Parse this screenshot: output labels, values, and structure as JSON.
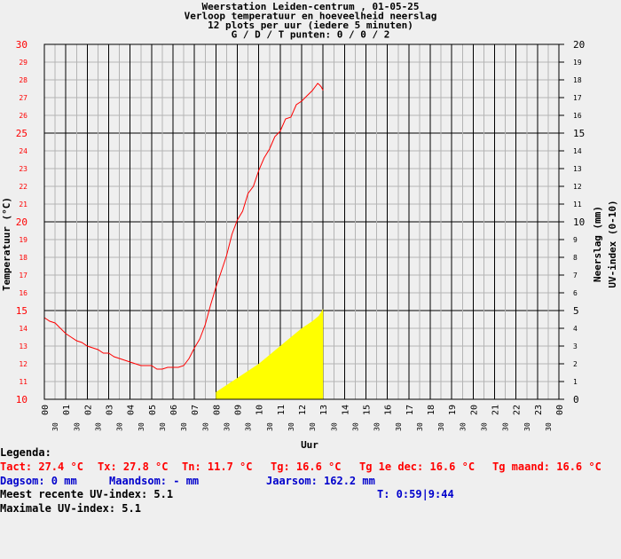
{
  "chart_data": {
    "type": "line",
    "title_lines": [
      "Weerstation Leiden-centrum , 01-05-25",
      "Verloop temperatuur en hoeveelheid neerslag",
      "12 plots per uur (iedere 5 minuten)",
      "G / D / T punten: 0 / 0 / 2"
    ],
    "xlabel": "Uur",
    "ylabel_left": "Temperatuur (°C)",
    "ylabel_right_1": "Neerslag (mm)",
    "ylabel_right_2": "UV-index (0-10)",
    "ylim_left": [
      10,
      30
    ],
    "ylim_right": [
      0,
      20
    ],
    "xlim": [
      0,
      24
    ],
    "grid": true,
    "left_ticks": [
      "10",
      "11",
      "12",
      "13",
      "14",
      "15",
      "16",
      "17",
      "18",
      "19",
      "20",
      "21",
      "22",
      "23",
      "24",
      "25",
      "26",
      "27",
      "28",
      "29",
      "30"
    ],
    "right_ticks": [
      "0",
      "1",
      "2",
      "3",
      "4",
      "5",
      "6",
      "7",
      "8",
      "9",
      "10",
      "11",
      "12",
      "13",
      "14",
      "15",
      "16",
      "17",
      "18",
      "19",
      "20"
    ],
    "hour_ticks": [
      "00",
      "01",
      "02",
      "03",
      "04",
      "05",
      "06",
      "07",
      "08",
      "09",
      "10",
      "11",
      "12",
      "13",
      "14",
      "15",
      "16",
      "17",
      "18",
      "19",
      "20",
      "21",
      "22",
      "23",
      "00"
    ],
    "half_hour_tick": "30",
    "series": [
      {
        "kind": "temperature",
        "color": "#ff0000",
        "x": [
          0.0,
          0.25,
          0.5,
          0.75,
          1.0,
          1.25,
          1.5,
          1.75,
          2.0,
          2.25,
          2.5,
          2.75,
          3.0,
          3.25,
          3.5,
          3.75,
          4.0,
          4.25,
          4.5,
          4.75,
          5.0,
          5.25,
          5.5,
          5.75,
          6.0,
          6.25,
          6.5,
          6.75,
          7.0,
          7.25,
          7.5,
          7.75,
          8.0,
          8.25,
          8.5,
          8.75,
          9.0,
          9.25,
          9.5,
          9.75,
          10.0,
          10.25,
          10.5,
          10.75,
          11.0,
          11.25,
          11.5,
          11.75,
          12.0,
          12.25,
          12.5,
          12.75,
          12.85,
          12.92,
          13.0
        ],
        "y": [
          14.6,
          14.4,
          14.3,
          14.0,
          13.7,
          13.5,
          13.3,
          13.2,
          13.0,
          12.9,
          12.8,
          12.6,
          12.6,
          12.4,
          12.3,
          12.2,
          12.1,
          12.0,
          11.9,
          11.9,
          11.9,
          11.7,
          11.7,
          11.8,
          11.8,
          11.8,
          11.9,
          12.3,
          12.9,
          13.4,
          14.2,
          15.3,
          16.3,
          17.2,
          18.1,
          19.3,
          20.1,
          20.6,
          21.6,
          22.0,
          22.9,
          23.6,
          24.1,
          24.8,
          25.1,
          25.8,
          25.9,
          26.6,
          26.8,
          27.1,
          27.4,
          27.8,
          27.7,
          27.6,
          27.4
        ]
      },
      {
        "kind": "uv",
        "color": "#ffff00",
        "x": [
          8.0,
          8.5,
          9.0,
          9.5,
          10.0,
          10.5,
          11.0,
          11.5,
          12.0,
          12.5,
          12.8,
          13.0,
          13.0
        ],
        "y": [
          0.4,
          0.8,
          1.2,
          1.6,
          2.0,
          2.5,
          3.0,
          3.5,
          4.0,
          4.4,
          4.7,
          5.1,
          0
        ]
      }
    ]
  },
  "legend": {
    "heading": "Legenda:",
    "tact": "Tact: 27.4 °C",
    "tx": "Tx: 27.8 °C",
    "tn": "Tn: 11.7 °C",
    "tg": "Tg: 16.6 °C",
    "tg1e": "Tg 1e dec: 16.6 °C",
    "tgmaand": "Tg maand: 16.6 °C",
    "dagsom": "Dagsom: 0 mm",
    "maandsom": "Maandsom: - mm",
    "jaarsom": "Jaarsom: 162.2 mm",
    "uv_recent": "Meest recente UV-index: 5.1",
    "time": "T: 0:59|9:44",
    "uv_max": "Maximale UV-index: 5.1"
  }
}
